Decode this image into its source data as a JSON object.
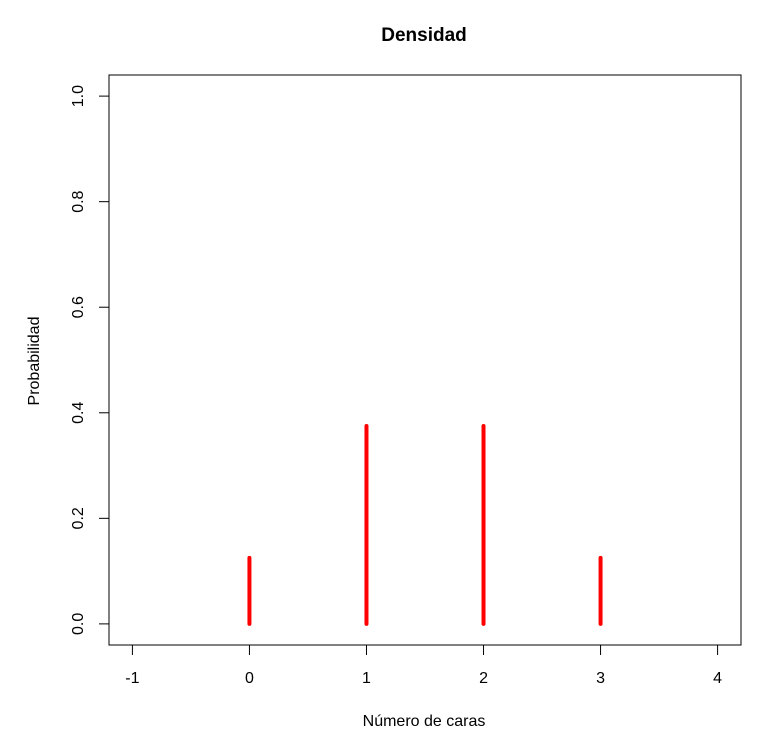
{
  "chart_data": {
    "type": "bar",
    "title": "Densidad",
    "xlabel": "Número de caras",
    "ylabel": "Probabilidad",
    "xlim": [
      -1.2,
      4.2
    ],
    "ylim": [
      0,
      1
    ],
    "x_ticks": [
      -1,
      0,
      1,
      2,
      3,
      4
    ],
    "x_tick_labels": [
      "-1",
      "0",
      "1",
      "2",
      "3",
      "4"
    ],
    "y_ticks": [
      0,
      0.2,
      0.4,
      0.6,
      0.8,
      1.0
    ],
    "y_tick_labels": [
      "0.0",
      "0.2",
      "0.4",
      "0.6",
      "0.8",
      "1.0"
    ],
    "x": [
      0,
      1,
      2,
      3
    ],
    "values": [
      0.125,
      0.375,
      0.375,
      0.125
    ],
    "bar_color": "#ff0000",
    "grid": false
  }
}
